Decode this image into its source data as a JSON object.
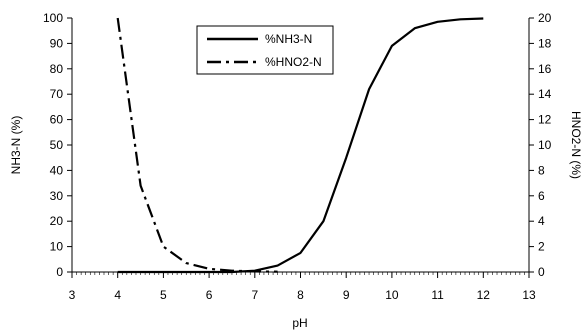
{
  "chart_data": {
    "type": "line",
    "xlabel": "pH",
    "ylabel": "NH3-N (%)",
    "y2label": "HNO2-N (%)",
    "xlim": [
      3,
      13
    ],
    "ylim": [
      0,
      100
    ],
    "y2lim": [
      0,
      20
    ],
    "x_ticks": [
      "3",
      "4",
      "5",
      "6",
      "7",
      "8",
      "9",
      "10",
      "11",
      "12",
      "13"
    ],
    "y_ticks": [
      "0",
      "10",
      "20",
      "30",
      "40",
      "50",
      "60",
      "70",
      "80",
      "90",
      "100"
    ],
    "y2_ticks": [
      "0",
      "2",
      "4",
      "6",
      "8",
      "10",
      "12",
      "14",
      "16",
      "18",
      "20"
    ],
    "legend_position": "top-center",
    "series": [
      {
        "name": "%NH3-N",
        "axis": "left",
        "style": "solid",
        "x": [
          4,
          4.5,
          5,
          5.5,
          6,
          6.5,
          7,
          7.5,
          8,
          8.5,
          9,
          9.5,
          10,
          10.5,
          11,
          11.5,
          12
        ],
        "y": [
          0,
          0,
          0,
          0,
          0,
          0,
          0.5,
          2.5,
          7.5,
          20,
          45,
          72,
          89,
          96,
          98.5,
          99.5,
          99.8
        ]
      },
      {
        "name": "%HNO2-N",
        "axis": "right",
        "style": "dashdot",
        "x": [
          4,
          4.5,
          5,
          5.5,
          6,
          6.5,
          7,
          7.5
        ],
        "y": [
          20,
          6.8,
          2.0,
          0.7,
          0.25,
          0.1,
          0.05,
          0.02
        ]
      }
    ]
  }
}
